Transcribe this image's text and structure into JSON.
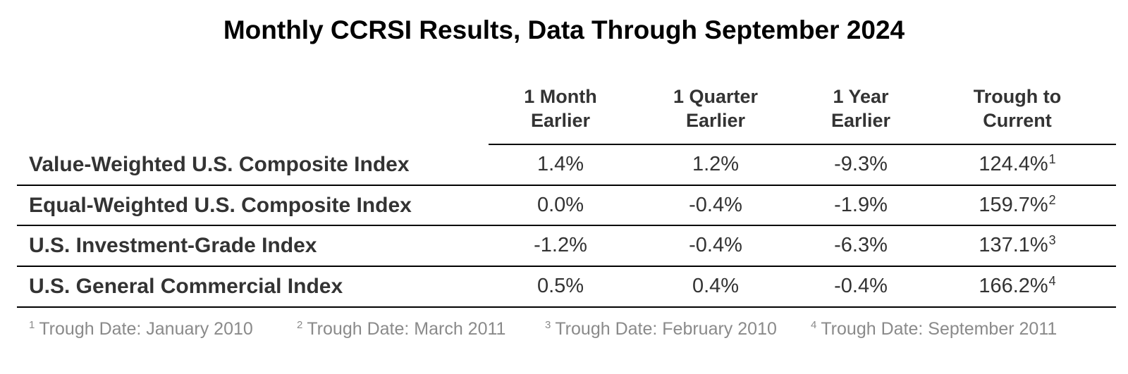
{
  "chart_data": {
    "type": "table",
    "title": "Monthly CCRSI Results, Data Through September 2024",
    "columns": [
      {
        "line1": "1 Month",
        "line2": "Earlier"
      },
      {
        "line1": "1 Quarter",
        "line2": "Earlier"
      },
      {
        "line1": "1 Year",
        "line2": "Earlier"
      },
      {
        "line1": "Trough to",
        "line2": "Current"
      }
    ],
    "rows": [
      {
        "label": "Value-Weighted U.S. Composite Index",
        "values": [
          "1.4%",
          "1.2%",
          "-9.3%",
          "124.4%"
        ],
        "trough_note": "1"
      },
      {
        "label": "Equal-Weighted U.S. Composite Index",
        "values": [
          "0.0%",
          "-0.4%",
          "-1.9%",
          "159.7%"
        ],
        "trough_note": "2"
      },
      {
        "label": "U.S. Investment-Grade Index",
        "values": [
          "-1.2%",
          "-0.4%",
          "-6.3%",
          "137.1%"
        ],
        "trough_note": "3"
      },
      {
        "label": "U.S. General Commercial Index",
        "values": [
          "0.5%",
          "0.4%",
          "-0.4%",
          "166.2%"
        ],
        "trough_note": "4"
      }
    ],
    "footnotes": [
      {
        "mark": "1",
        "text": "Trough Date: January 2010"
      },
      {
        "mark": "2",
        "text": "Trough Date: March 2011"
      },
      {
        "mark": "3",
        "text": "Trough Date: February 2010"
      },
      {
        "mark": "4",
        "text": "Trough Date: September 2011"
      }
    ]
  }
}
